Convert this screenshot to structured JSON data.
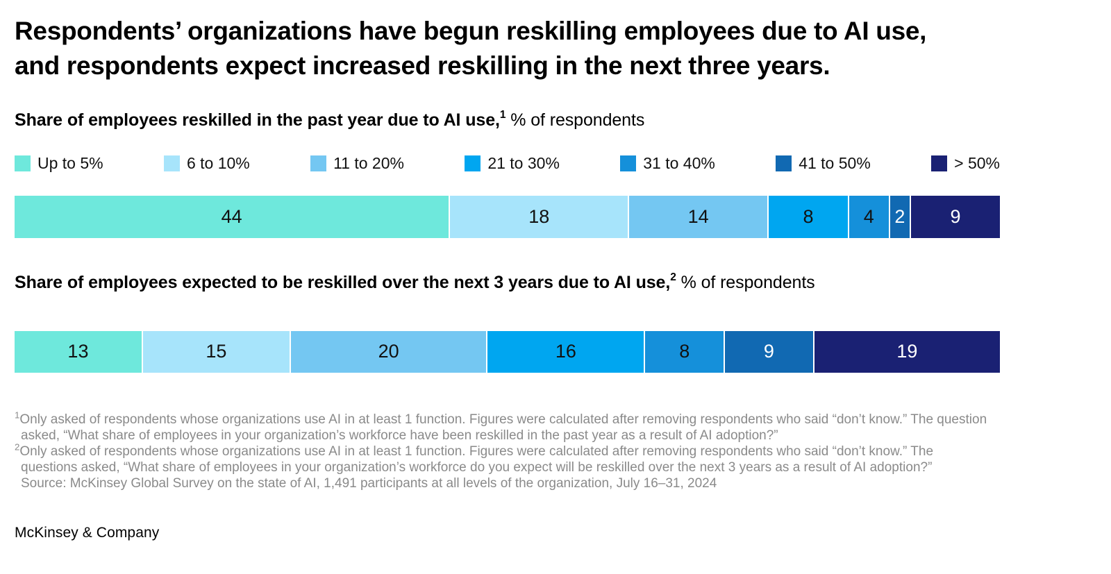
{
  "header": {
    "title": "Respondents’ organizations have begun reskilling employees due to AI use,\nand respondents expect increased reskilling in the next three years."
  },
  "palette": {
    "colors": [
      "#6EE8DC",
      "#A7E4FB",
      "#74C7F2",
      "#00A6F0",
      "#1590DA",
      "#1169B2",
      "#1A2173"
    ],
    "label_colors": [
      "#111111",
      "#111111",
      "#111111",
      "#111111",
      "#111111",
      "#ffffff",
      "#ffffff"
    ]
  },
  "legend": {
    "items": [
      {
        "label": "Up to 5%"
      },
      {
        "label": "6 to 10%"
      },
      {
        "label": "11 to 20%"
      },
      {
        "label": "21 to 30%"
      },
      {
        "label": "31 to 40%"
      },
      {
        "label": "41 to 50%"
      },
      {
        "label": "> 50%"
      }
    ]
  },
  "chart_data": [
    {
      "type": "bar",
      "variant": "stacked-horizontal-100pct",
      "heading": "Share of employees reskilled in the past year due to AI use,",
      "heading_footnote_ref": "1",
      "heading_suffix": " % of respondents",
      "categories": [
        "Up to 5%",
        "6 to 10%",
        "11 to 20%",
        "21 to 30%",
        "31 to 40%",
        "41 to 50%",
        "> 50%"
      ],
      "values": [
        44,
        18,
        14,
        8,
        4,
        2,
        9
      ],
      "unit": "% of respondents",
      "legend_position": "top",
      "grid": false
    },
    {
      "type": "bar",
      "variant": "stacked-horizontal-100pct",
      "heading": "Share of employees expected to be reskilled over the next 3 years due to AI use,",
      "heading_footnote_ref": "2",
      "heading_suffix": " % of respondents",
      "categories": [
        "Up to 5%",
        "6 to 10%",
        "11 to 20%",
        "21 to 30%",
        "31 to 40%",
        "41 to 50%",
        "> 50%"
      ],
      "values": [
        13,
        15,
        20,
        16,
        8,
        9,
        19
      ],
      "unit": "% of respondents",
      "legend_position": "none",
      "grid": false
    }
  ],
  "footnotes": [
    {
      "marker": "1",
      "text": "Only asked of respondents whose organizations use AI in at least 1 function. Figures were calculated after removing respondents who said “don’t know.” The question asked, “What share of employees in your organization’s workforce have been reskilled in the past year as a result of AI adoption?”"
    },
    {
      "marker": "2",
      "text": "Only asked of respondents whose organizations use AI in at least 1 function. Figures were calculated after removing respondents who said “don’t know.” The questions asked, “What share of employees in your organization’s workforce do you expect will be reskilled over the next 3 years as a result of AI adoption?”"
    }
  ],
  "source": "Source: McKinsey Global Survey on the state of AI, 1,491 participants at all levels of the organization, July 16–31, 2024",
  "footer": {
    "brand": "McKinsey & Company"
  }
}
